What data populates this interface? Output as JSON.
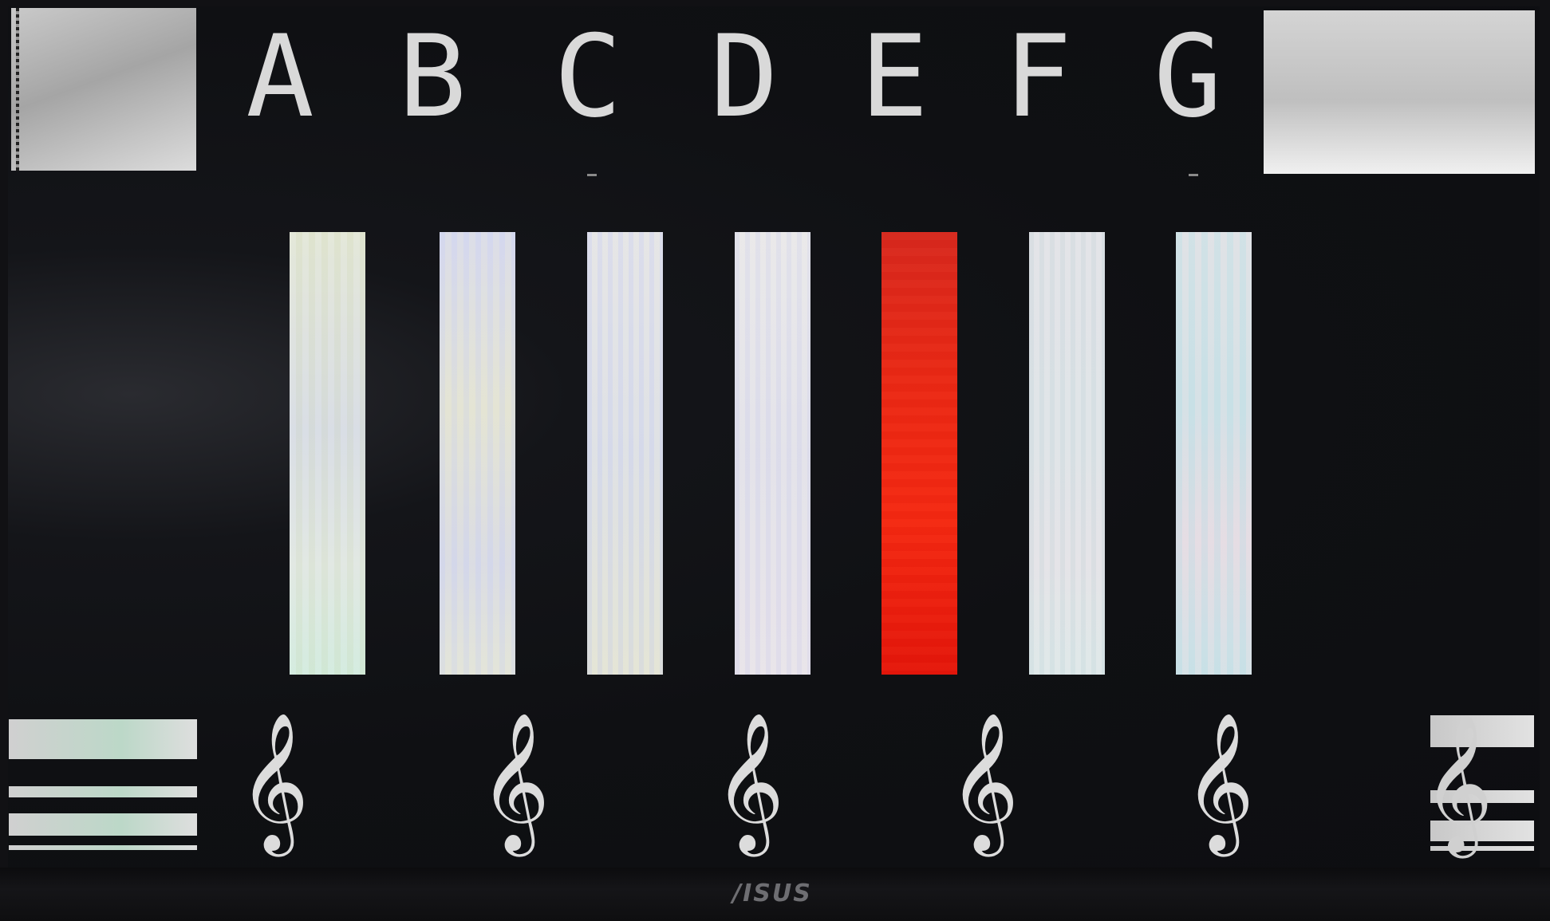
{
  "letters": {
    "items": [
      "A",
      "B",
      "C",
      "D",
      "E",
      "F",
      "G"
    ]
  },
  "bars": {
    "selected_index": 4,
    "selected_color": "#e8200f",
    "default_color": "#e2e3e6"
  },
  "clefs": {
    "glyph": "𝄞",
    "icon": "treble-clef-icon"
  },
  "brand": {
    "label": "/ISUS"
  }
}
